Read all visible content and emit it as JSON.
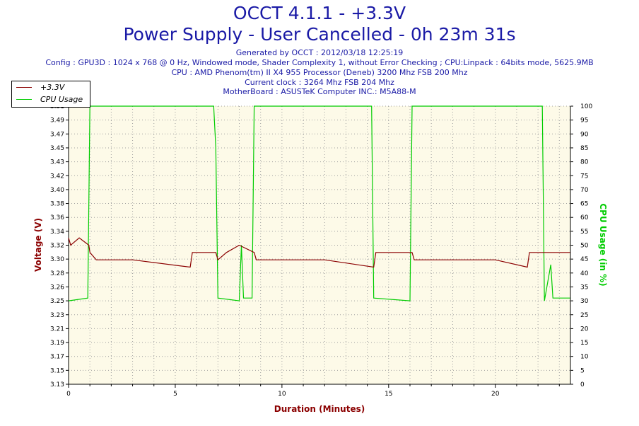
{
  "header": {
    "title_line1": "OCCT 4.1.1 - +3.3V",
    "title_line2": "Power Supply - User Cancelled - 0h 23m 31s",
    "generated": "Generated by OCCT : 2012/03/18 12:25:19",
    "config": "Config : GPU3D : 1024 x 768 @ 0 Hz, Windowed mode, Shader Complexity 1, without Error Checking ; CPU:Linpack : 64bits mode, 5625.9MB",
    "cpu": "CPU : AMD Phenom(tm) II X4 955 Processor (Deneb) 3200 Mhz FSB 200 Mhz",
    "clock": "Current clock : 3264 Mhz FSB 204 Mhz",
    "motherboard": "MotherBoard : ASUSTeK Computer INC.: M5A88-M"
  },
  "colors": {
    "title": "#1a1aa6",
    "voltage": "#8b0000",
    "cpu": "#00cc00",
    "plot_bg": "#fdfae8",
    "grid": "#a0a0a0"
  },
  "chart_data": {
    "type": "line",
    "xlabel": "Duration (Minutes)",
    "ylabel_left": "Voltage (V)",
    "ylabel_right": "CPU Usage (in %)",
    "xlim": [
      0,
      23.52
    ],
    "ylim_left": [
      3.13,
      3.51
    ],
    "ylim_right": [
      0,
      100
    ],
    "x_ticks": [
      "0",
      "5",
      "10",
      "15",
      "20"
    ],
    "y_ticks_left": [
      "3.51",
      "3.49",
      "3.47",
      "3.45",
      "3.43",
      "3.42",
      "3.40",
      "3.38",
      "3.36",
      "3.34",
      "3.32",
      "3.30",
      "3.28",
      "3.26",
      "3.25",
      "3.23",
      "3.21",
      "3.19",
      "3.17",
      "3.15",
      "3.13"
    ],
    "y_ticks_right": [
      "100",
      "95",
      "90",
      "85",
      "80",
      "75",
      "70",
      "65",
      "60",
      "55",
      "50",
      "45",
      "40",
      "35",
      "30",
      "25",
      "20",
      "15",
      "10",
      "5",
      "0"
    ],
    "grid": true,
    "legend_position": "top-left",
    "series": [
      {
        "name": "+3.3V",
        "axis": "left",
        "points": [
          [
            0,
            3.33
          ],
          [
            0.1,
            3.32
          ],
          [
            0.5,
            3.33
          ],
          [
            0.95,
            3.32
          ],
          [
            1.0,
            3.31
          ],
          [
            1.3,
            3.3
          ],
          [
            3.0,
            3.3
          ],
          [
            5.7,
            3.29
          ],
          [
            5.8,
            3.31
          ],
          [
            6.9,
            3.31
          ],
          [
            7.0,
            3.3
          ],
          [
            7.4,
            3.31
          ],
          [
            8.0,
            3.32
          ],
          [
            8.7,
            3.31
          ],
          [
            8.8,
            3.3
          ],
          [
            12.0,
            3.3
          ],
          [
            14.3,
            3.29
          ],
          [
            14.4,
            3.31
          ],
          [
            16.1,
            3.31
          ],
          [
            16.2,
            3.3
          ],
          [
            20.0,
            3.3
          ],
          [
            21.5,
            3.29
          ],
          [
            21.6,
            3.31
          ],
          [
            23.5,
            3.31
          ]
        ]
      },
      {
        "name": "CPU Usage",
        "axis": "right",
        "points": [
          [
            0,
            30
          ],
          [
            0.9,
            31
          ],
          [
            1.0,
            100
          ],
          [
            6.8,
            100
          ],
          [
            6.9,
            85
          ],
          [
            7.0,
            31
          ],
          [
            8.0,
            30
          ],
          [
            8.1,
            50
          ],
          [
            8.2,
            31
          ],
          [
            8.6,
            31
          ],
          [
            8.7,
            100
          ],
          [
            14.2,
            100
          ],
          [
            14.3,
            31
          ],
          [
            16.0,
            30
          ],
          [
            16.1,
            100
          ],
          [
            22.2,
            100
          ],
          [
            22.3,
            30
          ],
          [
            22.6,
            43
          ],
          [
            22.7,
            31
          ],
          [
            23.5,
            31
          ]
        ]
      }
    ]
  }
}
